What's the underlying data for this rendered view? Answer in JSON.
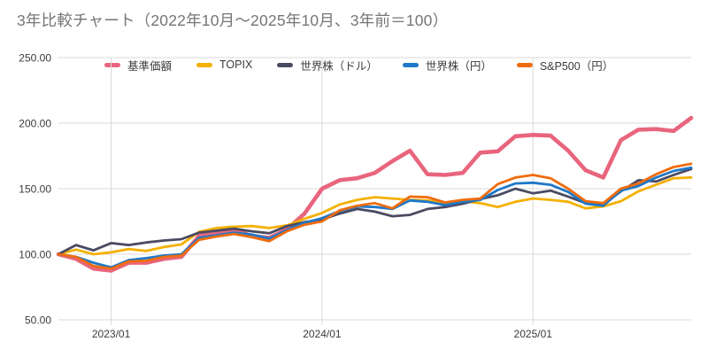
{
  "chart_data": {
    "type": "line",
    "title": "3年比較チャート（2022年10月～2025年10月、3年前＝100）",
    "x": [
      "2022/10",
      "2022/11",
      "2022/12",
      "2023/01",
      "2023/02",
      "2023/03",
      "2023/04",
      "2023/05",
      "2023/06",
      "2023/07",
      "2023/08",
      "2023/09",
      "2023/10",
      "2023/11",
      "2023/12",
      "2024/01",
      "2024/02",
      "2024/03",
      "2024/04",
      "2024/05",
      "2024/06",
      "2024/07",
      "2024/08",
      "2024/09",
      "2024/10",
      "2024/11",
      "2024/12",
      "2025/01",
      "2025/02",
      "2025/03",
      "2025/04",
      "2025/05",
      "2025/06",
      "2025/07",
      "2025/08",
      "2025/09",
      "2025/10"
    ],
    "ylim": [
      50,
      250
    ],
    "grid": true,
    "legend_position": "top",
    "y_ticks": [
      {
        "value": 50,
        "label": "50.00"
      },
      {
        "value": 100,
        "label": "100.00"
      },
      {
        "value": 150,
        "label": "150.00"
      },
      {
        "value": 200,
        "label": "200.00"
      },
      {
        "value": 250,
        "label": "250.00"
      }
    ],
    "x_ticks": [
      {
        "index": 3,
        "label": "2023/01"
      },
      {
        "index": 15,
        "label": "2024/01"
      },
      {
        "index": 27,
        "label": "2025/01"
      }
    ],
    "series": [
      {
        "name": "基準価額",
        "color": "#e8657d",
        "line_width": 4.6,
        "values": [
          100,
          96.5,
          89,
          87.5,
          93.5,
          93.5,
          96.5,
          98,
          114,
          116,
          118.5,
          114,
          112.5,
          119,
          131,
          150,
          156.5,
          158,
          162,
          171,
          179,
          161,
          160.5,
          162,
          177.5,
          178.5,
          190,
          191,
          190.5,
          179,
          164,
          158.5,
          187,
          195,
          195.5,
          194,
          204
        ]
      },
      {
        "name": "TOPIX",
        "color": "#f4b000",
        "line_width": 2.8,
        "values": [
          100,
          103.5,
          100,
          101.5,
          104,
          102.5,
          105.5,
          107.5,
          117,
          120,
          121,
          121.5,
          120,
          122,
          127,
          131.5,
          138,
          141.5,
          143.5,
          142.5,
          141.5,
          141,
          138.5,
          140.5,
          139,
          136,
          140,
          142.5,
          141.5,
          140,
          135,
          136.5,
          140.5,
          148,
          153,
          158,
          158.5
        ]
      },
      {
        "name": "世界株（ドル）",
        "color": "#4a4a63",
        "line_width": 2.8,
        "values": [
          100,
          107,
          103,
          108.5,
          107,
          109,
          110.5,
          111.5,
          116.5,
          118,
          119.5,
          117.5,
          116,
          121.5,
          124.5,
          126.5,
          131,
          134.5,
          132.5,
          129,
          130,
          134.5,
          136,
          138.5,
          142,
          145,
          150,
          146.5,
          148.5,
          144,
          139,
          138,
          148,
          156.5,
          155.5,
          160.5,
          165
        ]
      },
      {
        "name": "世界株（円）",
        "color": "#1e78c8",
        "line_width": 2.8,
        "values": [
          100,
          98,
          93.5,
          90,
          95.5,
          97,
          99,
          100,
          112.5,
          114.5,
          116.5,
          115,
          112,
          118.5,
          124,
          127.5,
          133,
          136.5,
          136,
          134.5,
          141,
          140,
          137.5,
          140,
          141.5,
          149,
          154,
          154.5,
          153,
          147.5,
          138.5,
          137,
          148.5,
          152,
          158.5,
          163.5,
          166
        ]
      },
      {
        "name": "S&P500（円）",
        "color": "#ef6c0d",
        "line_width": 2.8,
        "values": [
          100,
          98,
          91,
          89,
          94.5,
          95,
          98,
          99,
          111,
          113.5,
          115.5,
          113,
          110,
          117.5,
          122.5,
          125,
          133.5,
          137,
          139,
          135,
          144,
          143.5,
          139.5,
          141.5,
          142.5,
          153.5,
          158.5,
          160.5,
          158,
          150,
          140.5,
          139,
          150,
          154,
          161,
          166.5,
          169
        ]
      }
    ],
    "colors": {
      "background": "#ffffff",
      "title_text": "#757575",
      "axis_text": "#3b3b3b",
      "gridline": "#d9d9d9"
    }
  }
}
